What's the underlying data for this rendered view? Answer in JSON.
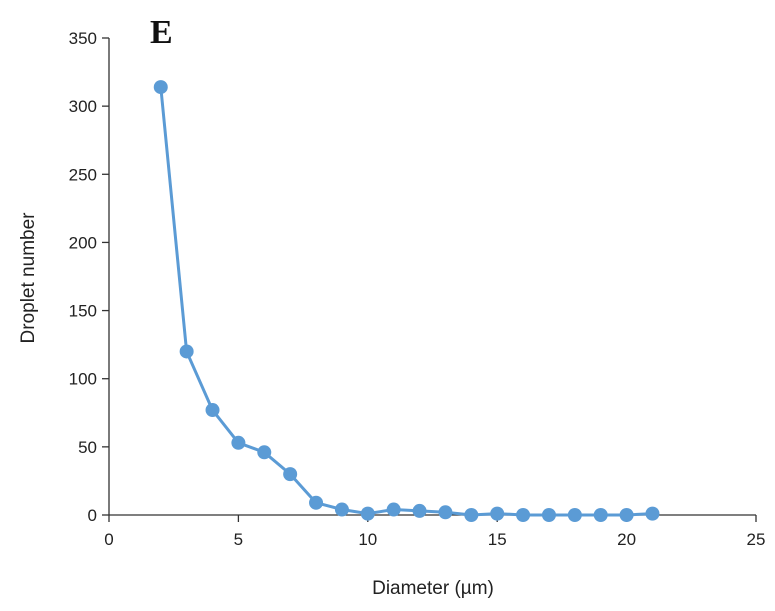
{
  "panel_label": "E",
  "chart_data": {
    "type": "line",
    "xlabel": "Diameter (µm)",
    "ylabel": "Droplet number",
    "xlim": [
      0,
      25
    ],
    "ylim": [
      0,
      350
    ],
    "x_ticks": [
      0,
      5,
      10,
      15,
      20,
      25
    ],
    "y_ticks": [
      0,
      50,
      100,
      150,
      200,
      250,
      300,
      350
    ],
    "grid": false,
    "series": [
      {
        "x": [
          2,
          3,
          4,
          5,
          6,
          7,
          8,
          9,
          10,
          11,
          12,
          13,
          14,
          15,
          16,
          17,
          18,
          19,
          20,
          21
        ],
        "values": [
          314,
          120,
          77,
          53,
          46,
          30,
          9,
          4,
          1,
          4,
          3,
          2,
          0,
          1,
          0,
          0,
          0,
          0,
          0,
          1
        ],
        "color": "#5B9BD5"
      }
    ]
  }
}
